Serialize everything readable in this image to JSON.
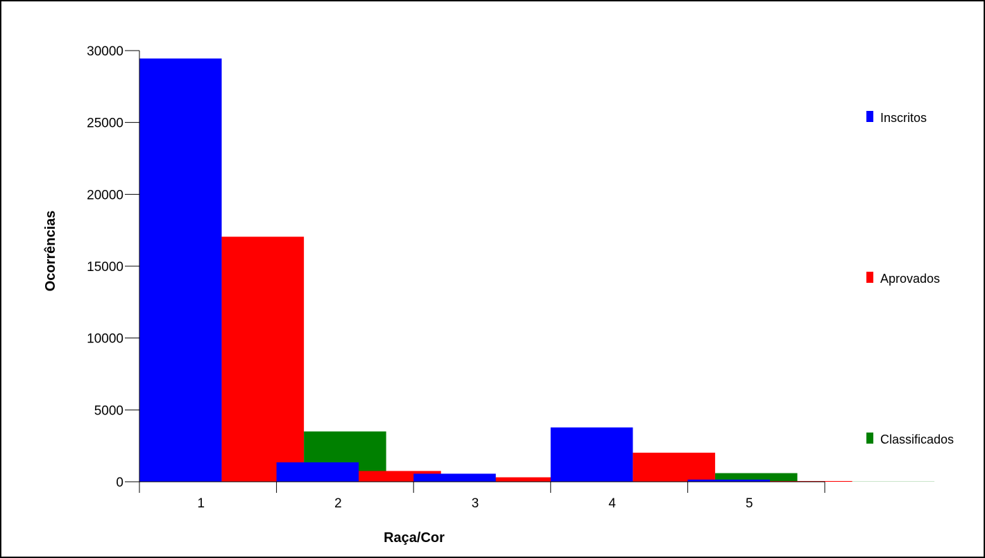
{
  "chart_data": {
    "type": "bar",
    "title": "",
    "xlabel": "Raça/Cor",
    "ylabel": "Ocorrências",
    "categories": [
      "1",
      "2",
      "3",
      "4",
      "5"
    ],
    "ylim": [
      0,
      30000
    ],
    "yticks": [
      0,
      5000,
      10000,
      15000,
      20000,
      25000,
      30000
    ],
    "grid": false,
    "legend_position": "right",
    "series": [
      {
        "name": "Inscritos",
        "color": "#0000ff",
        "values": [
          29450,
          1350,
          560,
          3780,
          150
        ]
      },
      {
        "name": "Aprovados",
        "color": "#ff0000",
        "values": [
          17050,
          750,
          310,
          2020,
          50
        ]
      },
      {
        "name": "Classificados",
        "color": "#008000",
        "values": [
          3500,
          280,
          60,
          600,
          10
        ]
      }
    ]
  }
}
